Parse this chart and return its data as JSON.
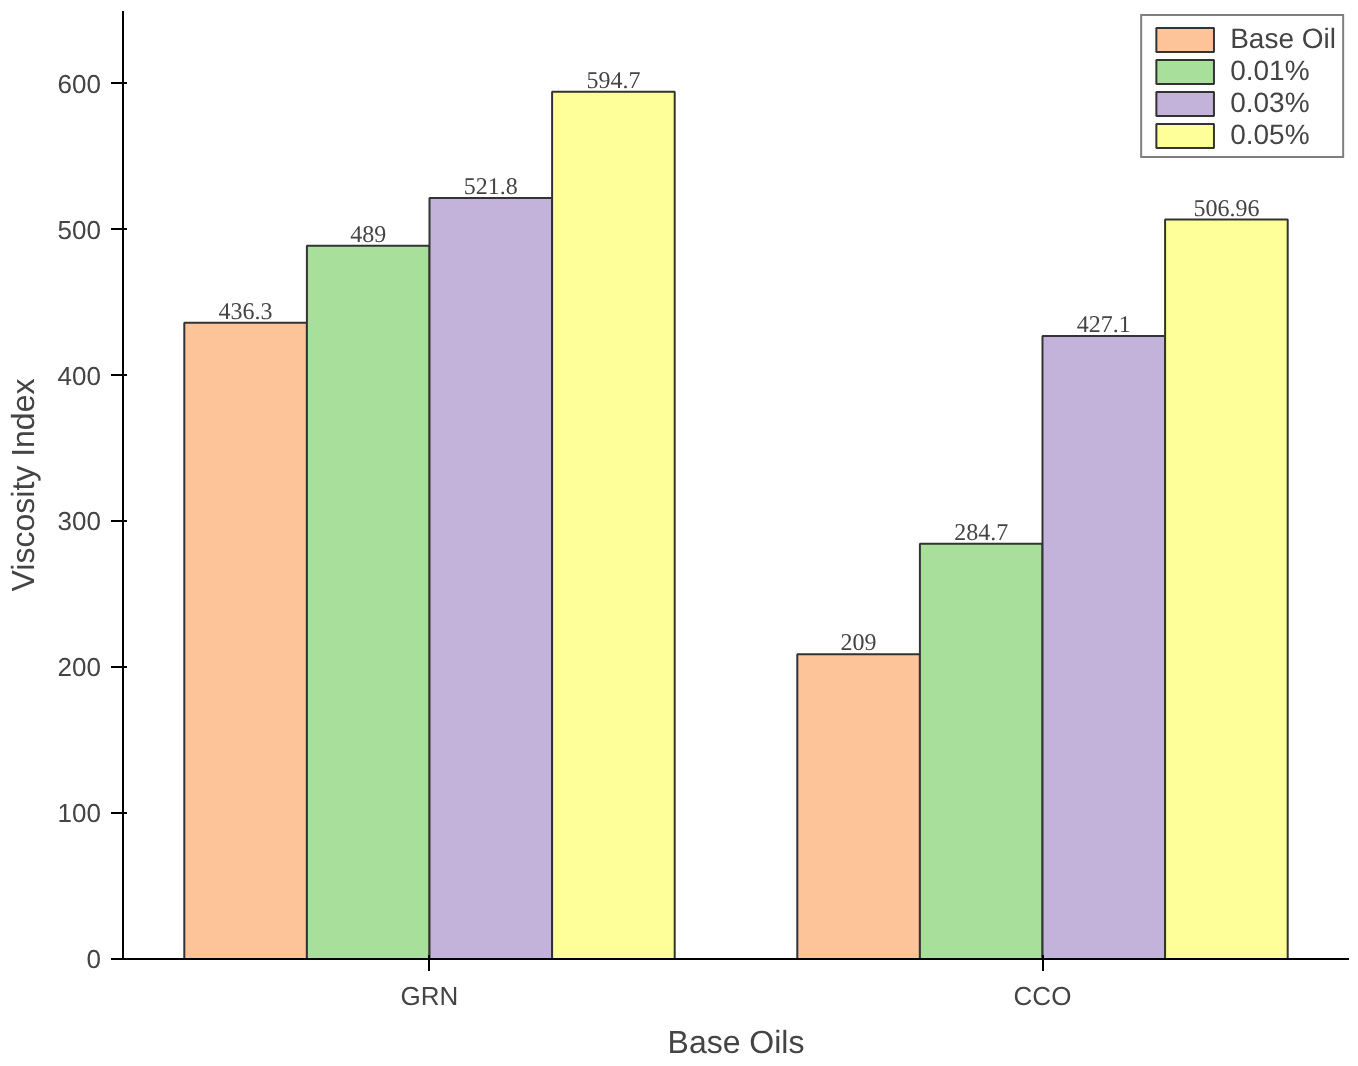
{
  "chart_data": {
    "type": "bar",
    "xlabel": "Base Oils",
    "ylabel": "Viscosity Index",
    "categories": [
      "GRN",
      "CCO"
    ],
    "series": [
      {
        "name": "Base Oil",
        "color": "#fdc49a",
        "values": [
          436.3,
          209
        ]
      },
      {
        "name": "0.01%",
        "color": "#a8df9b",
        "values": [
          489,
          284.7
        ]
      },
      {
        "name": "0.03%",
        "color": "#c3b2d9",
        "values": [
          521.8,
          427.1
        ]
      },
      {
        "name": "0.05%",
        "color": "#ffff9a",
        "values": [
          594.7,
          506.96
        ]
      }
    ],
    "ylim": [
      0,
      650
    ],
    "yticks": [
      0,
      100,
      200,
      300,
      400,
      500,
      600
    ],
    "data_labels": true,
    "legend": "top right",
    "grid": false
  }
}
